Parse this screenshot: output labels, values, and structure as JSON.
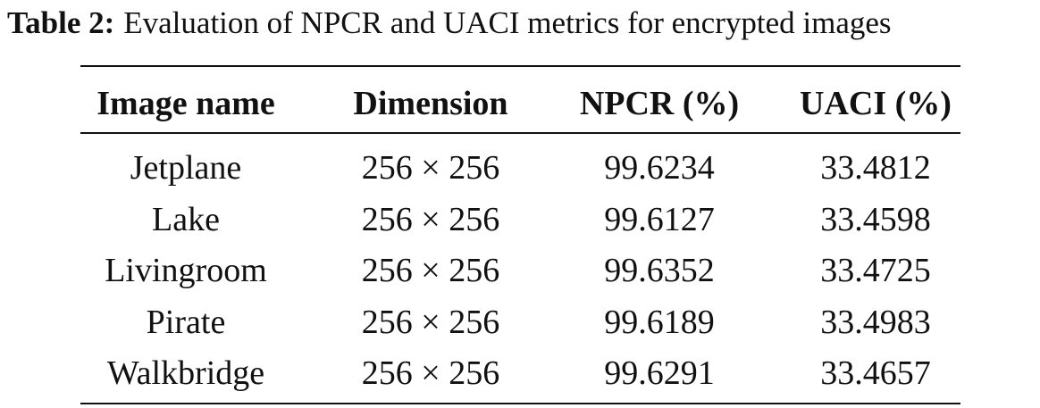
{
  "caption": {
    "label": "Table 2:",
    "text": "Evaluation of NPCR and UACI metrics for encrypted images"
  },
  "table": {
    "header": [
      "Image name",
      "Dimension",
      "NPCR (%)",
      "UACI (%)"
    ],
    "rows": [
      [
        "Jetplane",
        "256 × 256",
        "99.6234",
        "33.4812"
      ],
      [
        "Lake",
        "256 × 256",
        "99.6127",
        "33.4598"
      ],
      [
        "Livingroom",
        "256 × 256",
        "99.6352",
        "33.4725"
      ],
      [
        "Pirate",
        "256 × 256",
        "99.6189",
        "33.4983"
      ],
      [
        "Walkbridge",
        "256 × 256",
        "99.6291",
        "33.4657"
      ]
    ]
  }
}
